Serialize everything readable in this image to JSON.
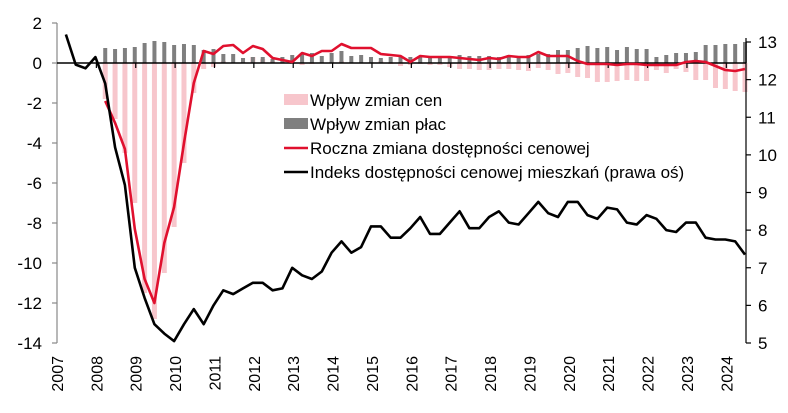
{
  "chart_data": {
    "type": "bar+line",
    "title": "",
    "xlabel": "",
    "ylabel_left": "",
    "ylabel_right": "",
    "x_tick_labels": [
      "2007",
      "2008",
      "2009",
      "2010",
      "2011",
      "2012",
      "2013",
      "2014",
      "2015",
      "2016",
      "2017",
      "2018",
      "2019",
      "2020",
      "2021",
      "2022",
      "2023",
      "2024"
    ],
    "ylim_left": [
      -14,
      2
    ],
    "y_ticks_left": [
      2,
      0,
      -2,
      -4,
      -6,
      -8,
      -10,
      -12,
      -14
    ],
    "ylim_right": [
      5,
      13
    ],
    "y_ticks_right": [
      13,
      12,
      11,
      10,
      9,
      8,
      7,
      6,
      5
    ],
    "frequency": "quarterly",
    "grid": false,
    "legend_position": "inside-center",
    "legend": [
      {
        "label": "Wpływ zmian cen",
        "type": "bar",
        "color": "#f7c6cc"
      },
      {
        "label": "Wpływ zmian płac",
        "type": "bar",
        "color": "#7f7f7f"
      },
      {
        "label": "Roczna zmiana dostępności cenowej",
        "type": "line",
        "color": "#e0102e"
      },
      {
        "label": "Indeks dostępności cenowej mieszkań (prawa oś)",
        "type": "line",
        "color": "#000000"
      }
    ],
    "series": [
      {
        "name": "Wpływ zmian cen",
        "axis": "left",
        "start": "2008Q1",
        "values": [
          -1.8,
          -2.8,
          -4.5,
          -7.0,
          -11.5,
          -12.8,
          -10.5,
          -8.2,
          -5.0,
          -1.5,
          -0.3,
          -0.2,
          0.1,
          0.0,
          0.05,
          0.3,
          0.2,
          0.1,
          0.05,
          -0.05,
          -0.1,
          -0.05,
          0.0,
          0.05,
          0.1,
          0.0,
          0.0,
          0.05,
          0.1,
          -0.05,
          -0.15,
          -0.1,
          -0.05,
          -0.1,
          -0.1,
          -0.2,
          -0.3,
          -0.3,
          -0.35,
          -0.35,
          -0.3,
          -0.3,
          -0.35,
          -0.4,
          -0.25,
          -0.35,
          -0.55,
          -0.5,
          -0.7,
          -0.75,
          -0.95,
          -0.95,
          -0.9,
          -0.85,
          -0.9,
          -0.9,
          -0.35,
          -0.5,
          -0.3,
          -0.45,
          -0.85,
          -0.85,
          -1.25,
          -1.3,
          -1.4,
          -1.45
        ]
      },
      {
        "name": "Wpływ zmian płac",
        "axis": "left",
        "start": "2008Q1",
        "values": [
          0.75,
          0.7,
          0.75,
          0.8,
          1.0,
          1.1,
          1.05,
          0.9,
          0.95,
          0.9,
          0.65,
          0.7,
          0.45,
          0.45,
          0.25,
          0.3,
          0.3,
          0.2,
          0.3,
          0.4,
          0.45,
          0.5,
          0.35,
          0.5,
          0.6,
          0.35,
          0.4,
          0.3,
          0.25,
          0.3,
          0.35,
          0.3,
          0.3,
          0.35,
          0.35,
          0.3,
          0.4,
          0.35,
          0.35,
          0.35,
          0.3,
          0.4,
          0.35,
          0.4,
          0.45,
          0.45,
          0.65,
          0.65,
          0.75,
          0.85,
          0.75,
          0.8,
          0.65,
          0.8,
          0.7,
          0.7,
          0.3,
          0.4,
          0.5,
          0.5,
          0.55,
          0.9,
          0.9,
          0.95,
          0.95,
          1.05
        ]
      },
      {
        "name": "Roczna zmiana dostępności cenowej",
        "axis": "left",
        "start": "2008Q1",
        "values": [
          -1.9,
          -3.0,
          -4.3,
          -8.3,
          -10.8,
          -12.0,
          -9.0,
          -7.2,
          -4.0,
          -1.0,
          0.6,
          0.45,
          0.85,
          0.9,
          0.5,
          0.85,
          0.7,
          0.25,
          0.15,
          0.05,
          0.5,
          0.35,
          0.6,
          0.6,
          0.95,
          0.75,
          0.75,
          0.75,
          0.45,
          0.4,
          0.35,
          0.05,
          0.35,
          0.3,
          0.3,
          0.3,
          0.25,
          0.2,
          0.15,
          0.25,
          0.2,
          0.35,
          0.3,
          0.3,
          0.55,
          0.35,
          0.35,
          0.35,
          0.1,
          -0.05,
          -0.05,
          -0.05,
          -0.1,
          -0.05,
          -0.05,
          -0.1,
          -0.1,
          -0.1,
          -0.1,
          0.05,
          0.1,
          0.05,
          -0.15,
          -0.35,
          -0.4,
          -0.3
        ]
      },
      {
        "name": "Indeks dostępności cenowej mieszkań (prawa oś)",
        "axis": "right",
        "start": "2007Q1",
        "values": [
          13.2,
          12.4,
          12.3,
          12.6,
          11.9,
          10.2,
          9.2,
          7.0,
          6.2,
          5.5,
          5.25,
          5.05,
          5.5,
          5.9,
          5.5,
          6.0,
          6.4,
          6.3,
          6.45,
          6.6,
          6.6,
          6.4,
          6.45,
          7.0,
          6.8,
          6.7,
          6.9,
          7.4,
          7.7,
          7.4,
          7.55,
          8.1,
          8.1,
          7.8,
          7.8,
          8.05,
          8.35,
          7.9,
          7.9,
          8.2,
          8.5,
          8.05,
          8.05,
          8.35,
          8.5,
          8.2,
          8.15,
          8.45,
          8.75,
          8.45,
          8.35,
          8.75,
          8.75,
          8.4,
          8.3,
          8.6,
          8.55,
          8.2,
          8.15,
          8.4,
          8.3,
          8.0,
          7.95,
          8.2,
          8.2,
          7.8,
          7.75,
          7.75,
          7.7,
          7.35
        ]
      }
    ]
  }
}
